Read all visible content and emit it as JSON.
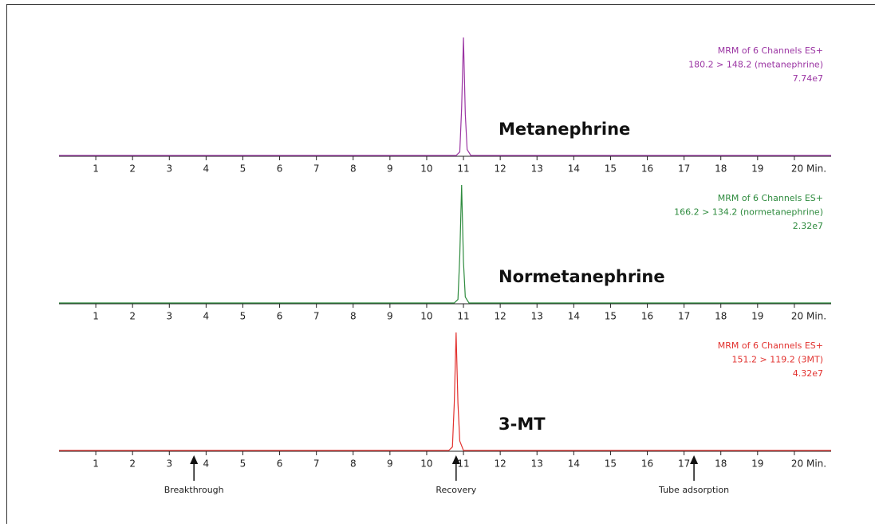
{
  "chart_data": [
    {
      "type": "line",
      "title": "Metanephrine",
      "labels": [
        "MRM of 6 Channels ES+",
        "180.2 > 148.2 (metanephrine)",
        "7.74e7"
      ],
      "color": "#9b35a3",
      "x": [
        0,
        10.8,
        10.9,
        10.95,
        11.0,
        11.05,
        11.1,
        11.2,
        21
      ],
      "values": [
        0,
        0,
        3,
        40,
        100,
        35,
        5,
        0,
        0
      ],
      "xlim": [
        0,
        21
      ],
      "ylim": [
        0,
        100
      ],
      "xticks": [
        1,
        2,
        3,
        4,
        5,
        6,
        7,
        8,
        9,
        10,
        11,
        12,
        13,
        14,
        15,
        16,
        17,
        18,
        19,
        {
          "value": 20,
          "label": "20 Min."
        }
      ]
    },
    {
      "type": "line",
      "title": "Normetanephrine",
      "labels": [
        "MRM of 6 Channels ES+",
        "166.2 > 134.2 (normetanephrine)",
        "2.32e7"
      ],
      "color": "#2e8b3e",
      "x": [
        0,
        10.75,
        10.85,
        10.9,
        10.95,
        11.0,
        11.05,
        11.15,
        21
      ],
      "values": [
        0,
        0,
        3,
        40,
        100,
        35,
        5,
        0,
        0
      ],
      "xlim": [
        0,
        21
      ],
      "ylim": [
        0,
        100
      ],
      "xticks": [
        1,
        2,
        3,
        4,
        5,
        6,
        7,
        8,
        9,
        10,
        11,
        12,
        13,
        14,
        15,
        16,
        17,
        18,
        19,
        {
          "value": 20,
          "label": "20 Min."
        }
      ]
    },
    {
      "type": "line",
      "title": "3-MT",
      "labels": [
        "MRM of 6 Channels ES+",
        "151.2 > 119.2 (3MT)",
        "4.32e7"
      ],
      "color": "#e2322f",
      "x": [
        0,
        10.6,
        10.7,
        10.75,
        10.8,
        10.85,
        10.9,
        11.0,
        21
      ],
      "values": [
        0,
        0,
        3,
        40,
        100,
        40,
        8,
        0,
        0
      ],
      "xlim": [
        0,
        21
      ],
      "ylim": [
        0,
        100
      ],
      "xticks": [
        1,
        2,
        3,
        4,
        5,
        6,
        7,
        8,
        9,
        10,
        11,
        12,
        13,
        14,
        15,
        16,
        17,
        18,
        19,
        {
          "value": 20,
          "label": "20 Min."
        }
      ],
      "annotations": [
        {
          "text": "Breakthrough",
          "x": 3.67
        },
        {
          "text": "Recovery",
          "x": 10.8
        },
        {
          "text": "Tube adsorption",
          "x": 17.27
        }
      ]
    }
  ]
}
